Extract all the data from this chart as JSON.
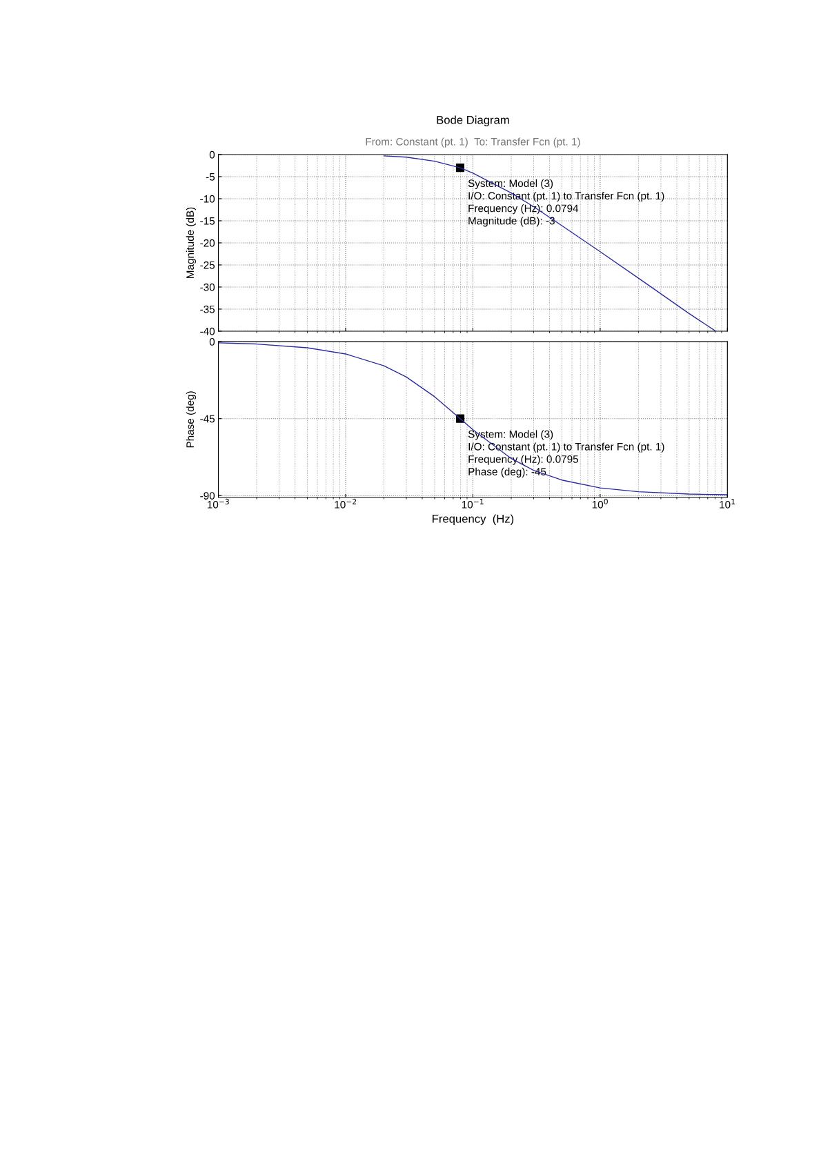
{
  "chart_data": [
    {
      "type": "line",
      "title": "Bode Diagram",
      "subtitle": "From: Constant (pt. 1)  To: Transfer Fcn (pt. 1)",
      "ylabel": "Magnitude (dB)",
      "log": "x",
      "grid": true,
      "tick_labels": "y",
      "legend": false,
      "xlim": [
        0.001,
        10
      ],
      "xticks": [
        {
          "value": 0.001,
          "label": null
        },
        {
          "value": 0.01,
          "label": null
        },
        {
          "value": 0.1,
          "label": null
        },
        {
          "value": 1,
          "label": null
        },
        {
          "value": 10,
          "label": null
        }
      ],
      "ylim": [
        -40,
        0
      ],
      "yticks": [
        0,
        -5,
        -10,
        -15,
        -20,
        -25,
        -30,
        -35,
        -40
      ],
      "series": [
        {
          "type": "line",
          "color": "#2b2ba0",
          "x": [
            0.02,
            0.03,
            0.05,
            0.0794,
            0.1,
            0.2,
            0.3,
            0.5,
            1,
            2,
            5,
            8.1
          ],
          "values": [
            -0.3,
            -0.6,
            -1.5,
            -3,
            -4.2,
            -8.7,
            -11.8,
            -16.1,
            -22,
            -28,
            -36,
            -40
          ]
        },
        {
          "type": "scatter",
          "marker": "square",
          "color": "#000000",
          "x": [
            0.0794
          ],
          "values": [
            -3
          ]
        }
      ],
      "annotations": [
        {
          "text": "System: Model (3)\nI/O: Constant (pt. 1) to Transfer Fcn (pt. 1)\nFrequency (Hz): 0.0794\nMagnitude (dB): -3",
          "x": 0.0794,
          "y": -3
        }
      ]
    },
    {
      "type": "line",
      "xlabel": "Frequency  (Hz)",
      "ylabel": "Phase (deg)",
      "log": "x",
      "grid": true,
      "legend": false,
      "xlim": [
        0.001,
        10
      ],
      "xticks": [
        {
          "value": 0.001,
          "label": "10$^{−3}$"
        },
        {
          "value": 0.01,
          "label": "10$^{−2}$"
        },
        {
          "value": 0.1,
          "label": "10$^{−1}$"
        },
        {
          "value": 1,
          "label": "10$^{0}$"
        },
        {
          "value": 10,
          "label": "10$^{1}$"
        }
      ],
      "ylim": [
        -91,
        0
      ],
      "yticks": [
        0,
        -45,
        -90
      ],
      "series": [
        {
          "type": "line",
          "color": "#2b2ba0",
          "x": [
            0.001,
            0.002,
            0.005,
            0.01,
            0.02,
            0.03,
            0.05,
            0.0795,
            0.1,
            0.2,
            0.3,
            0.5,
            1,
            2,
            5,
            10
          ],
          "values": [
            -0.7,
            -1.4,
            -3.6,
            -7.2,
            -14.1,
            -20.7,
            -32.2,
            -45,
            -51.5,
            -68.3,
            -75.2,
            -80.9,
            -85.5,
            -87.7,
            -89.1,
            -89.5
          ]
        },
        {
          "type": "scatter",
          "marker": "square",
          "color": "#000000",
          "x": [
            0.0795
          ],
          "values": [
            -45
          ]
        }
      ],
      "annotations": [
        {
          "text": "System: Model (3)\nI/O: Constant (pt. 1) to Transfer Fcn (pt. 1)\nFrequency (Hz): 0.0795\nPhase (deg): -45",
          "x": 0.0795,
          "y": -45
        }
      ]
    }
  ]
}
